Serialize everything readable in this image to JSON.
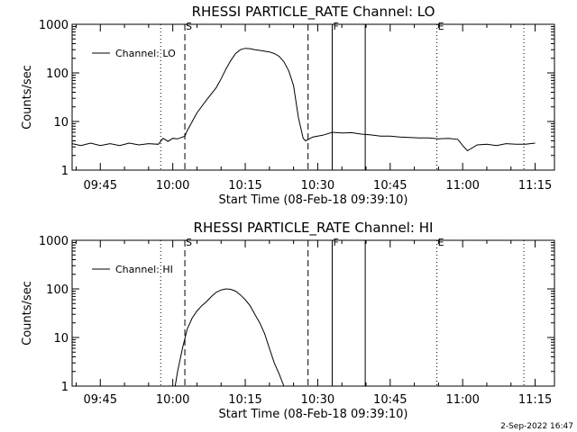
{
  "chart_data": [
    {
      "type": "line",
      "title": "RHESSI PARTICLE_RATE Channel: LO",
      "xlabel": "Start Time (08-Feb-18 09:39:10)",
      "ylabel": "Counts/sec",
      "yscale": "log",
      "ylim": [
        1,
        1000
      ],
      "xlim": [
        "09:39:10",
        "11:19:00"
      ],
      "yticks": [
        "1",
        "10",
        "100",
        "1000"
      ],
      "xticks": [
        "09:45",
        "10:00",
        "10:15",
        "10:30",
        "10:45",
        "11:00",
        "11:15"
      ],
      "grid": false,
      "legend": "top-left",
      "series": [
        {
          "name": "Channel: LO",
          "x": [
            "09:39:10",
            "09:41:00",
            "09:43:00",
            "09:45:00",
            "09:47:00",
            "09:49:00",
            "09:51:00",
            "09:53:00",
            "09:55:00",
            "09:57:00",
            "09:58:00",
            "09:59:00",
            "10:00:00",
            "10:01:00",
            "10:02:30",
            "10:03:00",
            "10:05:00",
            "10:07:00",
            "10:09:00",
            "10:10:00",
            "10:11:00",
            "10:12:00",
            "10:13:00",
            "10:14:00",
            "10:15:00",
            "10:16:00",
            "10:17:00",
            "10:18:00",
            "10:19:00",
            "10:20:00",
            "10:21:00",
            "10:22:00",
            "10:23:00",
            "10:24:00",
            "10:25:00",
            "10:26:00",
            "10:27:00",
            "10:27:30",
            "10:29:00",
            "10:31:00",
            "10:33:00",
            "10:35:00",
            "10:37:00",
            "10:39:00",
            "10:41:00",
            "10:43:00",
            "10:45:00",
            "10:47:00",
            "10:49:00",
            "10:51:00",
            "10:53:00",
            "10:55:00",
            "10:57:00",
            "10:59:00",
            "11:00:00",
            "11:01:00",
            "11:03:00",
            "11:05:00",
            "11:07:00",
            "11:09:00",
            "11:11:00",
            "11:13:00",
            "11:15:00"
          ],
          "y": [
            3.5,
            3.2,
            3.6,
            3.2,
            3.5,
            3.2,
            3.6,
            3.3,
            3.5,
            3.4,
            4.5,
            3.9,
            4.5,
            4.4,
            5.0,
            6.5,
            15,
            28,
            50,
            75,
            120,
            180,
            250,
            300,
            320,
            315,
            300,
            290,
            280,
            270,
            250,
            220,
            170,
            110,
            55,
            12,
            4.5,
            4.0,
            4.8,
            5.2,
            6.0,
            5.8,
            5.9,
            5.5,
            5.3,
            5.0,
            5.0,
            4.8,
            4.7,
            4.6,
            4.6,
            4.4,
            4.5,
            4.3,
            3.2,
            2.5,
            3.3,
            3.4,
            3.2,
            3.5,
            3.4,
            3.4,
            3.6
          ]
        }
      ],
      "markers": [
        {
          "time": "09:57:30",
          "style": "dotted",
          "label": ""
        },
        {
          "time": "10:02:30",
          "style": "dashed",
          "label": "S"
        },
        {
          "time": "10:28:00",
          "style": "dashed",
          "label": ""
        },
        {
          "time": "10:33:00",
          "style": "solid",
          "label": "F"
        },
        {
          "time": "10:39:50",
          "style": "solid",
          "label": ""
        },
        {
          "time": "10:54:40",
          "style": "dotted",
          "label": "E"
        },
        {
          "time": "11:12:40",
          "style": "dotted",
          "label": ""
        }
      ]
    },
    {
      "type": "line",
      "title": "RHESSI PARTICLE_RATE Channel: HI",
      "xlabel": "Start Time (08-Feb-18 09:39:10)",
      "ylabel": "Counts/sec",
      "yscale": "log",
      "ylim": [
        1,
        1000
      ],
      "xlim": [
        "09:39:10",
        "11:19:00"
      ],
      "yticks": [
        "1",
        "10",
        "100",
        "1000"
      ],
      "xticks": [
        "09:45",
        "10:00",
        "10:15",
        "10:30",
        "10:45",
        "11:00",
        "11:15"
      ],
      "grid": false,
      "legend": "top-left",
      "series": [
        {
          "name": "Channel: HI",
          "x": [
            "10:00:30",
            "10:01:00",
            "10:02:00",
            "10:03:00",
            "10:04:00",
            "10:05:00",
            "10:06:00",
            "10:07:00",
            "10:08:00",
            "10:09:00",
            "10:10:00",
            "10:11:00",
            "10:12:00",
            "10:13:00",
            "10:14:00",
            "10:15:00",
            "10:16:00",
            "10:17:00",
            "10:18:00",
            "10:19:00",
            "10:20:00",
            "10:21:00",
            "10:22:00",
            "10:23:00"
          ],
          "y": [
            1,
            2,
            6,
            15,
            25,
            35,
            45,
            55,
            70,
            85,
            95,
            100,
            98,
            90,
            75,
            60,
            45,
            30,
            20,
            12,
            6,
            3,
            1.8,
            1
          ]
        }
      ],
      "markers": [
        {
          "time": "09:57:30",
          "style": "dotted",
          "label": ""
        },
        {
          "time": "10:02:30",
          "style": "dashed",
          "label": "S"
        },
        {
          "time": "10:28:00",
          "style": "dashed",
          "label": ""
        },
        {
          "time": "10:33:00",
          "style": "solid",
          "label": "F"
        },
        {
          "time": "10:39:50",
          "style": "solid",
          "label": ""
        },
        {
          "time": "10:54:40",
          "style": "dotted",
          "label": "E"
        },
        {
          "time": "11:12:40",
          "style": "dotted",
          "label": ""
        }
      ]
    }
  ],
  "footer": {
    "date": "2-Sep-2022 16:47"
  }
}
